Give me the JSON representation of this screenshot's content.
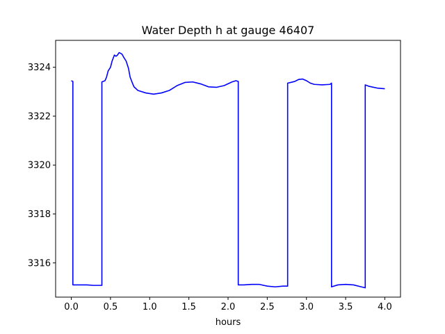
{
  "chart_data": {
    "type": "line",
    "title": "Water Depth h at gauge 46407",
    "xlabel": "hours",
    "ylabel": "",
    "xlim": [
      -0.2,
      4.2
    ],
    "ylim": [
      3314.6,
      3325.1
    ],
    "xticks": [
      0.0,
      0.5,
      1.0,
      1.5,
      2.0,
      2.5,
      3.0,
      3.5,
      4.0
    ],
    "xtick_labels": [
      "0.0",
      "0.5",
      "1.0",
      "1.5",
      "2.0",
      "2.5",
      "3.0",
      "3.5",
      "4.0"
    ],
    "yticks": [
      3316,
      3318,
      3320,
      3322,
      3324
    ],
    "ytick_labels": [
      "3316",
      "3318",
      "3320",
      "3322",
      "3324"
    ],
    "grid": false,
    "series": [
      {
        "color": "#0000ff",
        "x": [
          0.0,
          0.02,
          0.02,
          0.1,
          0.2,
          0.28,
          0.35,
          0.39,
          0.39,
          0.43,
          0.45,
          0.47,
          0.5,
          0.52,
          0.55,
          0.57,
          0.59,
          0.61,
          0.64,
          0.65,
          0.67,
          0.7,
          0.73,
          0.75,
          0.78,
          0.8,
          0.85,
          0.95,
          1.05,
          1.15,
          1.25,
          1.35,
          1.45,
          1.55,
          1.65,
          1.75,
          1.85,
          1.95,
          2.05,
          2.1,
          2.13,
          2.13,
          2.2,
          2.3,
          2.4,
          2.5,
          2.6,
          2.7,
          2.76,
          2.76,
          2.8,
          2.85,
          2.9,
          2.95,
          3.0,
          3.05,
          3.1,
          3.2,
          3.3,
          3.32,
          3.32,
          3.4,
          3.5,
          3.6,
          3.7,
          3.75,
          3.75,
          3.8,
          3.9,
          4.0
        ],
        "y": [
          3323.45,
          3323.42,
          3315.1,
          3315.1,
          3315.1,
          3315.08,
          3315.08,
          3315.08,
          3323.4,
          3323.45,
          3323.6,
          3323.85,
          3324.0,
          3324.25,
          3324.5,
          3324.45,
          3324.5,
          3324.6,
          3324.55,
          3324.52,
          3324.4,
          3324.25,
          3323.95,
          3323.6,
          3323.35,
          3323.2,
          3323.05,
          3322.95,
          3322.9,
          3322.95,
          3323.05,
          3323.25,
          3323.38,
          3323.4,
          3323.32,
          3323.2,
          3323.18,
          3323.25,
          3323.4,
          3323.45,
          3323.42,
          3315.1,
          3315.1,
          3315.12,
          3315.12,
          3315.05,
          3315.02,
          3315.05,
          3315.05,
          3323.35,
          3323.38,
          3323.42,
          3323.5,
          3323.52,
          3323.45,
          3323.35,
          3323.3,
          3323.28,
          3323.3,
          3323.35,
          3315.02,
          3315.1,
          3315.12,
          3315.1,
          3315.02,
          3314.98,
          3323.28,
          3323.22,
          3323.15,
          3323.12
        ]
      }
    ]
  }
}
